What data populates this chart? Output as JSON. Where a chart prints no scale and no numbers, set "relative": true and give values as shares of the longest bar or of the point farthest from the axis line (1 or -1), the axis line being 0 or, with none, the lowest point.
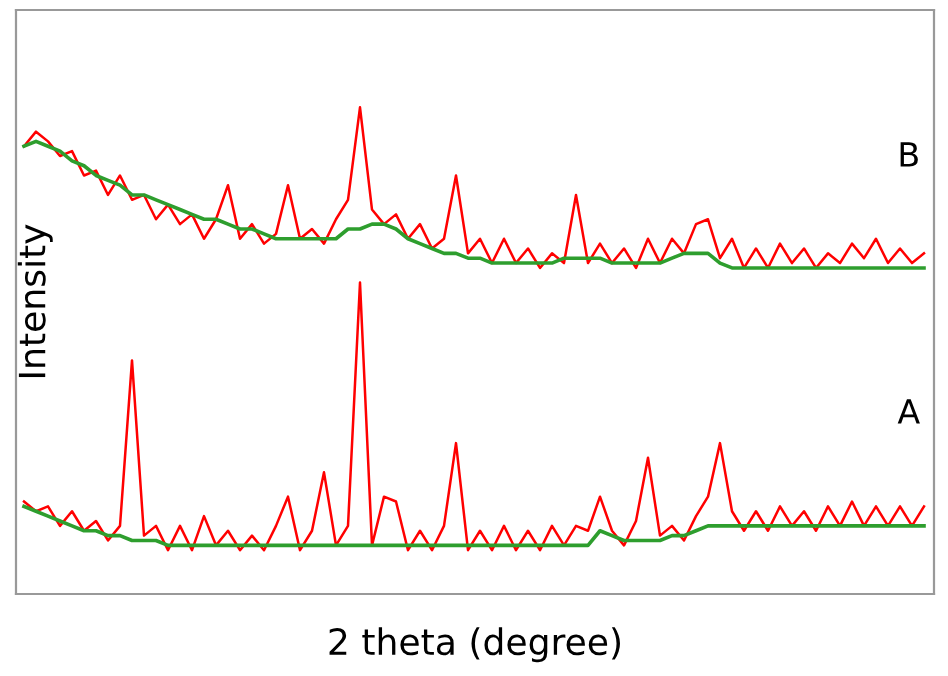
{
  "chart_data": {
    "type": "line",
    "relative": true,
    "xlabel": "2 theta (degree)",
    "ylabel": "Intensity",
    "legend": false,
    "marker": "none",
    "line_style": "solid",
    "categories": [
      null,
      null,
      null,
      null,
      null,
      null,
      null,
      null,
      null,
      null,
      null,
      null,
      null,
      null,
      null,
      null,
      null,
      null,
      null,
      null,
      null,
      null,
      null,
      null,
      null,
      null,
      null,
      null,
      null,
      null,
      null,
      null,
      null,
      null,
      null,
      null,
      null,
      null,
      null,
      null,
      null,
      null,
      null,
      null,
      null,
      null,
      null,
      null,
      null,
      null,
      null,
      null,
      null,
      null,
      null,
      null,
      null,
      null,
      null,
      null,
      null,
      null,
      null,
      null,
      null,
      null,
      null,
      null,
      null,
      null,
      null,
      null,
      null,
      null,
      null,
      null
    ],
    "series": [
      {
        "color": "#ff0000",
        "values": [
          0.92,
          0.95,
          0.93,
          0.9,
          0.91,
          0.86,
          0.87,
          0.82,
          0.86,
          0.81,
          0.82,
          0.77,
          0.8,
          0.76,
          0.78,
          0.73,
          0.77,
          0.84,
          0.73,
          0.76,
          0.72,
          0.74,
          0.84,
          0.73,
          0.75,
          0.72,
          0.77,
          0.81,
          1.0,
          0.79,
          0.76,
          0.78,
          0.73,
          0.76,
          0.71,
          0.73,
          0.86,
          0.7,
          0.73,
          0.68,
          0.73,
          0.68,
          0.71,
          0.67,
          0.7,
          0.68,
          0.82,
          0.68,
          0.72,
          0.68,
          0.71,
          0.67,
          0.73,
          0.68,
          0.73,
          0.7,
          0.76,
          0.77,
          0.69,
          0.73,
          0.67,
          0.71,
          0.67,
          0.72,
          0.68,
          0.71,
          0.67,
          0.7,
          0.68,
          0.72,
          0.69,
          0.73,
          0.68,
          0.71,
          0.68,
          0.7
        ]
      },
      {
        "color": "#2e9e2e",
        "values": [
          0.92,
          0.93,
          0.92,
          0.91,
          0.89,
          0.88,
          0.86,
          0.85,
          0.84,
          0.82,
          0.82,
          0.81,
          0.8,
          0.79,
          0.78,
          0.77,
          0.77,
          0.76,
          0.75,
          0.75,
          0.74,
          0.73,
          0.73,
          0.73,
          0.73,
          0.73,
          0.73,
          0.75,
          0.75,
          0.76,
          0.76,
          0.75,
          0.73,
          0.72,
          0.71,
          0.7,
          0.7,
          0.69,
          0.69,
          0.68,
          0.68,
          0.68,
          0.68,
          0.68,
          0.68,
          0.69,
          0.69,
          0.69,
          0.69,
          0.68,
          0.68,
          0.68,
          0.68,
          0.68,
          0.69,
          0.7,
          0.7,
          0.7,
          0.68,
          0.67,
          0.67,
          0.67,
          0.67,
          0.67,
          0.67,
          0.67,
          0.67,
          0.67,
          0.67,
          0.67,
          0.67,
          0.67,
          0.67,
          0.67,
          0.67,
          0.67
        ]
      },
      {
        "color": "#ff0000",
        "values": [
          0.19,
          0.17,
          0.18,
          0.14,
          0.17,
          0.13,
          0.15,
          0.11,
          0.14,
          0.48,
          0.12,
          0.14,
          0.09,
          0.14,
          0.09,
          0.16,
          0.1,
          0.13,
          0.09,
          0.12,
          0.09,
          0.14,
          0.2,
          0.09,
          0.13,
          0.25,
          0.1,
          0.14,
          0.64,
          0.1,
          0.2,
          0.19,
          0.09,
          0.13,
          0.09,
          0.14,
          0.31,
          0.09,
          0.13,
          0.09,
          0.14,
          0.09,
          0.13,
          0.09,
          0.14,
          0.1,
          0.14,
          0.13,
          0.2,
          0.13,
          0.1,
          0.15,
          0.28,
          0.12,
          0.14,
          0.11,
          0.16,
          0.2,
          0.31,
          0.17,
          0.13,
          0.17,
          0.13,
          0.18,
          0.14,
          0.17,
          0.13,
          0.18,
          0.14,
          0.19,
          0.14,
          0.18,
          0.14,
          0.18,
          0.14,
          0.18
        ]
      },
      {
        "color": "#2e9e2e",
        "values": [
          0.18,
          0.17,
          0.16,
          0.15,
          0.14,
          0.13,
          0.13,
          0.12,
          0.12,
          0.11,
          0.11,
          0.11,
          0.1,
          0.1,
          0.1,
          0.1,
          0.1,
          0.1,
          0.1,
          0.1,
          0.1,
          0.1,
          0.1,
          0.1,
          0.1,
          0.1,
          0.1,
          0.1,
          0.1,
          0.1,
          0.1,
          0.1,
          0.1,
          0.1,
          0.1,
          0.1,
          0.1,
          0.1,
          0.1,
          0.1,
          0.1,
          0.1,
          0.1,
          0.1,
          0.1,
          0.1,
          0.1,
          0.1,
          0.13,
          0.12,
          0.11,
          0.11,
          0.11,
          0.11,
          0.12,
          0.12,
          0.13,
          0.14,
          0.14,
          0.14,
          0.14,
          0.14,
          0.14,
          0.14,
          0.14,
          0.14,
          0.14,
          0.14,
          0.14,
          0.14,
          0.14,
          0.14,
          0.14,
          0.14,
          0.14,
          0.14
        ]
      }
    ],
    "annotations": [
      "B",
      "A"
    ]
  }
}
